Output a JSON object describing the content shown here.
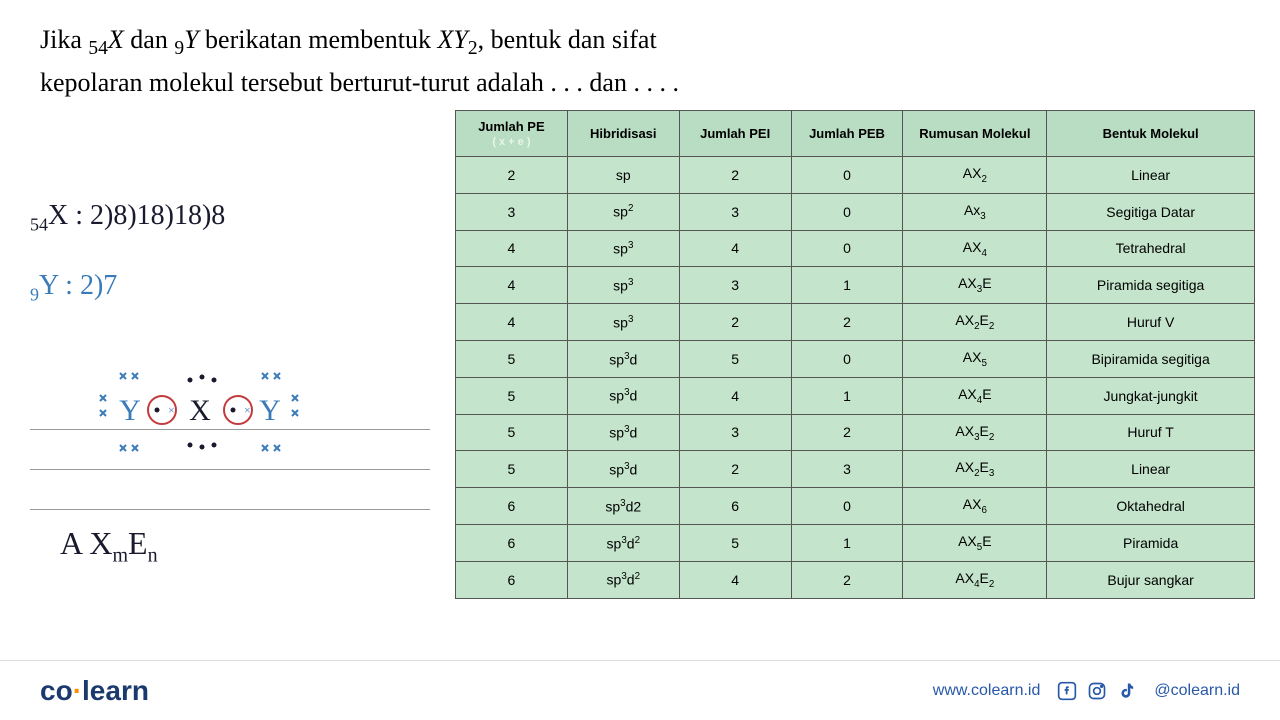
{
  "question": {
    "prefix": "Jika ",
    "x_sub": "54",
    "x_var": "X",
    "mid1": " dan ",
    "y_sub": "9",
    "y_var": "Y",
    "mid2": " berikatan membentuk ",
    "xy": "XY",
    "xy_sub": "2",
    "rest": ", bentuk dan sifat kepolaran molekul tersebut berturut-turut adalah . . . dan . . . ."
  },
  "handwriting": {
    "line1_sub": "54",
    "line1": "X : 2)8)18)18)8",
    "line2_sub": "9",
    "line2": "Y : 2)7",
    "formula": "A X",
    "formula_m": "m",
    "formula_e": "E",
    "formula_n": "n"
  },
  "table": {
    "headers": [
      "Jumlah PE",
      "Hibridisasi",
      "Jumlah PEI",
      "Jumlah PEB",
      "Rumusan Molekul",
      "Bentuk Molekul"
    ],
    "header_sub": "( x + e )",
    "column_widths": [
      "14%",
      "14%",
      "14%",
      "14%",
      "18%",
      "26%"
    ],
    "cell_bg": "#c4e5cc",
    "header_bg": "#b8ddc2",
    "border_color": "#555555",
    "rows": [
      {
        "pe": "2",
        "hyb": "sp",
        "pei": "2",
        "peb": "0",
        "rumus": "AX₂",
        "bentuk": "Linear"
      },
      {
        "pe": "3",
        "hyb": "sp²",
        "pei": "3",
        "peb": "0",
        "rumus": "Ax₃",
        "bentuk": "Segitiga Datar"
      },
      {
        "pe": "4",
        "hyb": "sp³",
        "pei": "4",
        "peb": "0",
        "rumus": "AX₄",
        "bentuk": "Tetrahedral"
      },
      {
        "pe": "4",
        "hyb": "sp³",
        "pei": "3",
        "peb": "1",
        "rumus": "AX₃E",
        "bentuk": "Piramida segitiga"
      },
      {
        "pe": "4",
        "hyb": "sp³",
        "pei": "2",
        "peb": "2",
        "rumus": "AX₂E₂",
        "bentuk": "Huruf V"
      },
      {
        "pe": "5",
        "hyb": "sp³d",
        "pei": "5",
        "peb": "0",
        "rumus": "AX₅",
        "bentuk": "Bipiramida segitiga"
      },
      {
        "pe": "5",
        "hyb": "sp³d",
        "pei": "4",
        "peb": "1",
        "rumus": "AX₄E",
        "bentuk": "Jungkat-jungkit"
      },
      {
        "pe": "5",
        "hyb": "sp³d",
        "pei": "3",
        "peb": "2",
        "rumus": "AX₃E₂",
        "bentuk": "Huruf T"
      },
      {
        "pe": "5",
        "hyb": "sp³d",
        "pei": "2",
        "peb": "3",
        "rumus": "AX₂E₃",
        "bentuk": "Linear"
      },
      {
        "pe": "6",
        "hyb": "sp³d2",
        "pei": "6",
        "peb": "0",
        "rumus": "AX₆",
        "bentuk": "Oktahedral"
      },
      {
        "pe": "6",
        "hyb": "sp³d²",
        "pei": "5",
        "peb": "1",
        "rumus": "AX₅E",
        "bentuk": "Piramida"
      },
      {
        "pe": "6",
        "hyb": "sp³d²",
        "pei": "4",
        "peb": "2",
        "rumus": "AX₄E₂",
        "bentuk": "Bujur sangkar"
      }
    ]
  },
  "lewis": {
    "atoms": {
      "left": "Y",
      "center": "X",
      "right": "Y"
    },
    "atom_color": "#3b7bb8",
    "center_color": "#1a1a2e",
    "bond_color": "#c43a3a",
    "lone_pair_color": "#3b7bb8",
    "font_size": 30
  },
  "footer": {
    "logo_part1": "co",
    "logo_accent": "·",
    "logo_part2": "learn",
    "url": "www.colearn.id",
    "handle": "@colearn.id",
    "accent_color": "#ff8c00",
    "brand_color": "#1a3a6e",
    "link_color": "#2858a8"
  }
}
